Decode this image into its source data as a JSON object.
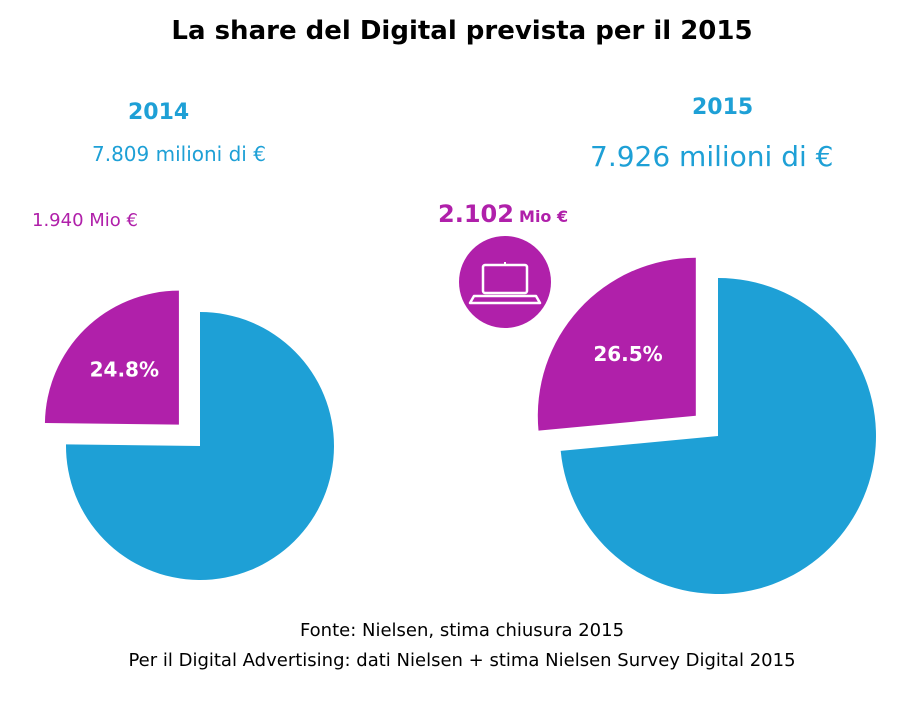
{
  "title": "La share del Digital prevista per il 2015",
  "colors": {
    "digital": "#b020aa",
    "other": "#1ea0d6",
    "header": "#1ea0d6"
  },
  "chart_data": [
    {
      "type": "pie",
      "year_label": "2014",
      "total_label": "7.809 milioni di €",
      "digital_label": "1.940 Mio €",
      "slices": [
        {
          "value": 24.8,
          "label": "24.8%",
          "color": "#b020aa",
          "exploded": true
        },
        {
          "value": 75.2,
          "label": "",
          "color": "#1ea0d6",
          "exploded": false
        }
      ]
    },
    {
      "type": "pie",
      "year_label": "2015",
      "total_label": "7.926 milioni di €",
      "digital_label_value": "2.102",
      "digital_label_unit": "Mio €",
      "icon": "laptop-icon",
      "slices": [
        {
          "value": 26.5,
          "label": "26.5%",
          "color": "#b020aa",
          "exploded": true
        },
        {
          "value": 73.5,
          "label": "",
          "color": "#1ea0d6",
          "exploded": false
        }
      ]
    }
  ],
  "source": {
    "line1": "Fonte: Nielsen, stima chiusura 2015",
    "line2": "Per il Digital Advertising: dati Nielsen + stima Nielsen Survey Digital 2015"
  }
}
